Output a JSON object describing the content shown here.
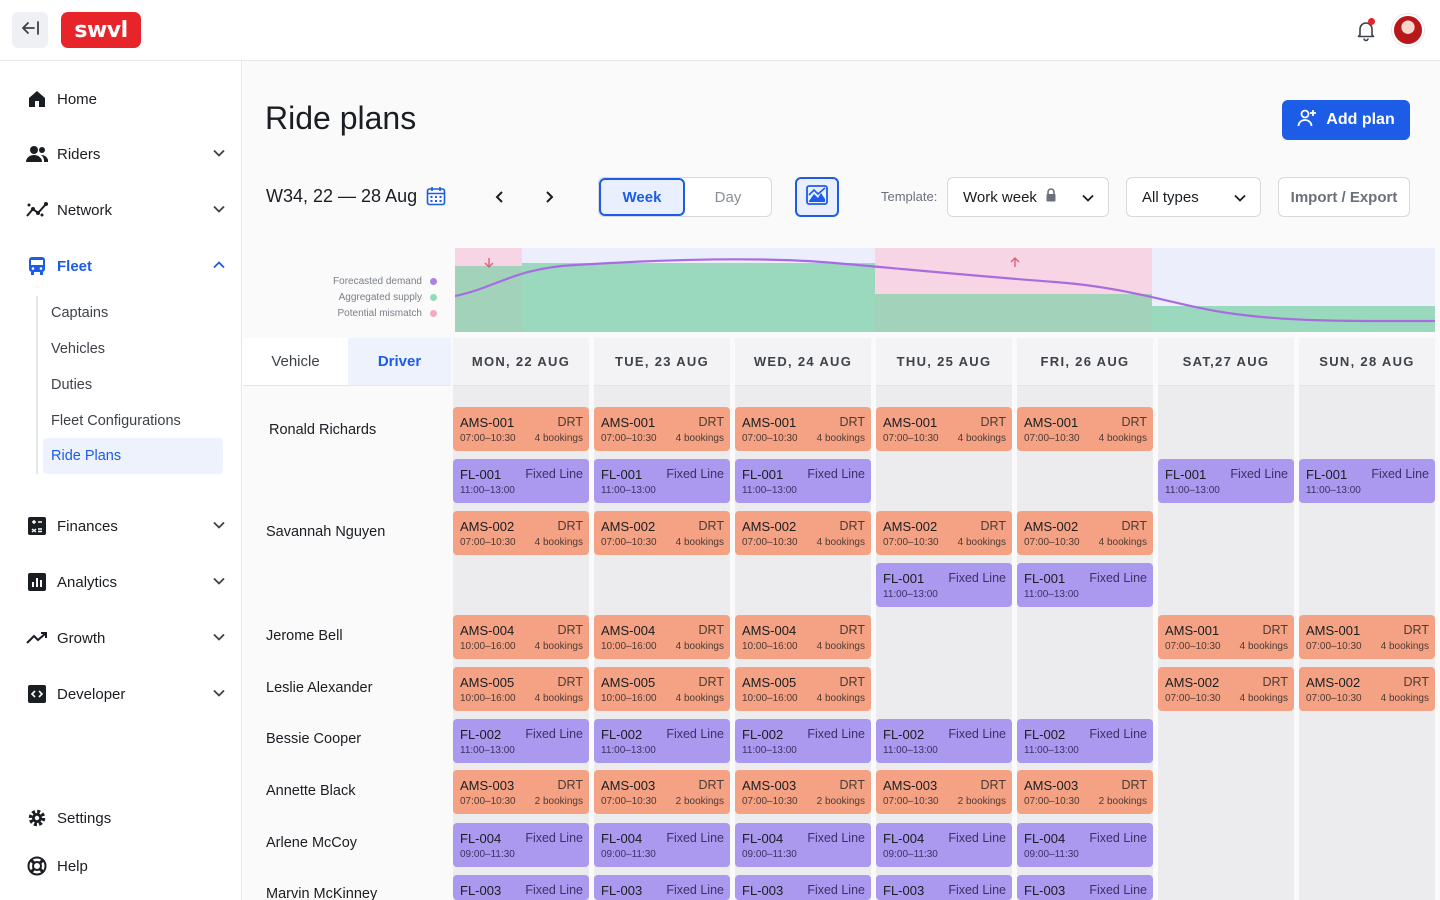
{
  "app": {
    "logo_text": "swvl",
    "brand_color": "#e8242b",
    "accent_color": "#1c5ce6"
  },
  "sidebar": {
    "items": [
      {
        "label": "Home",
        "icon": "home-icon"
      },
      {
        "label": "Riders",
        "icon": "users-icon"
      },
      {
        "label": "Network",
        "icon": "network-icon"
      },
      {
        "label": "Fleet",
        "icon": "bus-icon"
      },
      {
        "label": "Finances",
        "icon": "calculator-icon"
      },
      {
        "label": "Analytics",
        "icon": "bar-chart-icon"
      },
      {
        "label": "Growth",
        "icon": "trend-up-icon"
      },
      {
        "label": "Developer",
        "icon": "code-icon"
      },
      {
        "label": "Settings",
        "icon": "gear-icon"
      },
      {
        "label": "Help",
        "icon": "lifebuoy-icon"
      }
    ],
    "fleet_sub": [
      "Captains",
      "Vehicles",
      "Duties",
      "Fleet Configurations",
      "Ride Plans"
    ]
  },
  "header": {
    "title": "Ride plans",
    "add_label": "Add plan",
    "week_label": "W34, 22 — 28 Aug",
    "view_week": "Week",
    "view_day": "Day",
    "template_label": "Template:",
    "template_value": "Work week",
    "type_value": "All types",
    "import_label": "Import / Export"
  },
  "legend": {
    "demand": "Forecasted demand",
    "supply": "Aggregated supply",
    "mismatch": "Potential mismatch",
    "demand_color": "#a983e0",
    "supply_color": "#8fdcb8",
    "mismatch_color": "#f4a9c5"
  },
  "grid": {
    "tab_vehicle": "Vehicle",
    "tab_driver": "Driver",
    "days": [
      "MON, 22 AUG",
      "TUE, 23 AUG",
      "WED, 24 AUG",
      "THU, 25 AUG",
      "FRI, 26 AUG",
      "SAT,27 AUG",
      "SUN, 28 AUG"
    ],
    "drivers": [
      "Ronald Richards",
      "Savannah Nguyen",
      "Jerome Bell",
      "Leslie Alexander",
      "Bessie Cooper",
      "Annette Black",
      "Arlene McCoy",
      "Marvin McKinney"
    ]
  },
  "cards": {
    "r1": {
      "code": "AMS-001",
      "type": "DRT",
      "time": "07:00–10:30",
      "book": "4 bookings"
    },
    "r2": {
      "code": "FL-001",
      "type": "Fixed Line",
      "time": "11:00–13:00"
    },
    "r3": {
      "code": "AMS-002",
      "type": "DRT",
      "time": "07:00–10:30",
      "book": "4 bookings"
    },
    "r4": {
      "code": "FL-001",
      "type": "Fixed Line",
      "time": "11:00–13:00"
    },
    "r5": {
      "code": "AMS-004",
      "type": "DRT",
      "time": "10:00–16:00",
      "book": "4 bookings"
    },
    "r5w": {
      "code": "AMS-001",
      "type": "DRT",
      "time": "07:00–10:30",
      "book": "4 bookings"
    },
    "r6": {
      "code": "AMS-005",
      "type": "DRT",
      "time": "10:00–16:00",
      "book": "4 bookings"
    },
    "r6w": {
      "code": "AMS-002",
      "type": "DRT",
      "time": "07:00–10:30",
      "book": "4 bookings"
    },
    "r7": {
      "code": "FL-002",
      "type": "Fixed Line",
      "time": "11:00–13:00"
    },
    "r8": {
      "code": "AMS-003",
      "type": "DRT",
      "time": "07:00–10:30",
      "book": "2 bookings"
    },
    "r9": {
      "code": "FL-004",
      "type": "Fixed Line",
      "time": "09:00–11:30"
    },
    "r10": {
      "code": "FL-003",
      "type": "Fixed Line"
    }
  }
}
